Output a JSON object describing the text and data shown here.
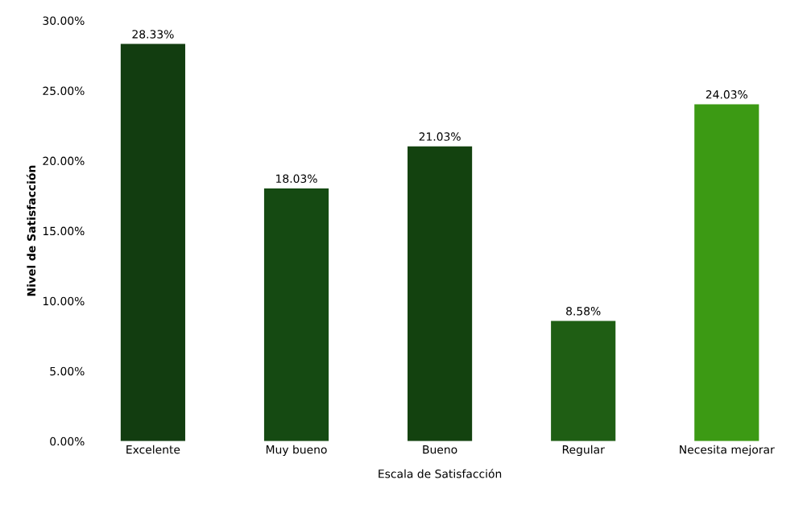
{
  "chart_data": {
    "type": "bar",
    "xlabel": "Escala de Satisfacción",
    "ylabel": "Nivel de Satisfacción",
    "categories": [
      "Excelente",
      "Muy bueno",
      "Bueno",
      "Regular",
      "Necesita mejorar"
    ],
    "values": [
      28.33,
      18.03,
      21.03,
      8.58,
      24.03
    ],
    "value_labels": [
      "28.33%",
      "18.03%",
      "21.03%",
      "8.58%",
      "24.03%"
    ],
    "colors": [
      "#123d10",
      "#154a12",
      "#13420f",
      "#1f5e14",
      "#3c9a14"
    ],
    "ylim": [
      0,
      30
    ],
    "yticks": [
      {
        "value": 0,
        "label": "0.00%"
      },
      {
        "value": 5,
        "label": "5.00%"
      },
      {
        "value": 10,
        "label": "10.00%"
      },
      {
        "value": 15,
        "label": "15.00%"
      },
      {
        "value": 20,
        "label": "20.00%"
      },
      {
        "value": 25,
        "label": "25.00%"
      },
      {
        "value": 30,
        "label": "30.00%"
      }
    ],
    "grid": false,
    "legend": false
  }
}
